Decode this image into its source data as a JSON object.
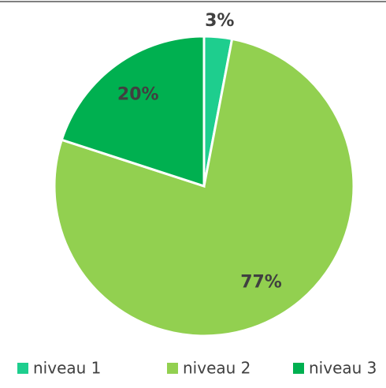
{
  "chart_data": {
    "type": "pie",
    "categories": [
      "niveau 1",
      "niveau 2",
      "niveau 3"
    ],
    "values": [
      3,
      77,
      20
    ],
    "value_labels": [
      "3%",
      "77%",
      "20%"
    ],
    "colors": [
      "#1ece8e",
      "#92d050",
      "#00b050"
    ],
    "legend": "bottom"
  }
}
